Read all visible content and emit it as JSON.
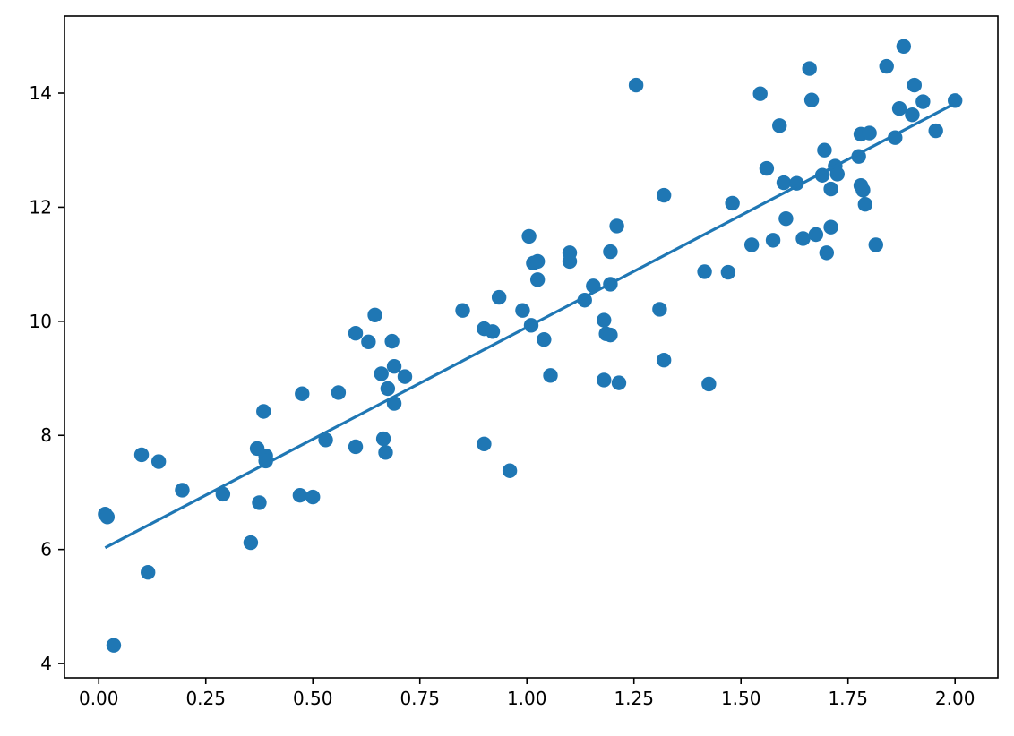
{
  "chart_data": {
    "type": "scatter",
    "title": "",
    "xlabel": "",
    "ylabel": "",
    "xlim": [
      -0.08,
      2.1
    ],
    "ylim": [
      3.75,
      15.35
    ],
    "x_ticks": [
      0.0,
      0.25,
      0.5,
      0.75,
      1.0,
      1.25,
      1.5,
      1.75,
      2.0
    ],
    "x_tick_labels": [
      "0.00",
      "0.25",
      "0.50",
      "0.75",
      "1.00",
      "1.25",
      "1.50",
      "1.75",
      "2.00"
    ],
    "y_ticks": [
      4,
      6,
      8,
      10,
      12,
      14
    ],
    "y_tick_labels": [
      "4",
      "6",
      "8",
      "10",
      "12",
      "14"
    ],
    "grid": false,
    "legend": "none",
    "colors": {
      "series": "#1f77b4",
      "axes": "#000000",
      "background": "#ffffff"
    },
    "series": [
      {
        "kind": "scatter",
        "points": [
          [
            0.015,
            6.62
          ],
          [
            0.02,
            6.57
          ],
          [
            0.035,
            4.32
          ],
          [
            0.1,
            7.66
          ],
          [
            0.115,
            5.6
          ],
          [
            0.14,
            7.54
          ],
          [
            0.195,
            7.04
          ],
          [
            0.29,
            6.97
          ],
          [
            0.355,
            6.12
          ],
          [
            0.37,
            7.77
          ],
          [
            0.375,
            6.82
          ],
          [
            0.385,
            8.42
          ],
          [
            0.39,
            7.64
          ],
          [
            0.39,
            7.55
          ],
          [
            0.47,
            6.95
          ],
          [
            0.475,
            8.73
          ],
          [
            0.5,
            6.92
          ],
          [
            0.53,
            7.92
          ],
          [
            0.56,
            8.75
          ],
          [
            0.6,
            9.79
          ],
          [
            0.6,
            7.8
          ],
          [
            0.63,
            9.64
          ],
          [
            0.645,
            10.11
          ],
          [
            0.66,
            9.08
          ],
          [
            0.665,
            7.94
          ],
          [
            0.67,
            7.7
          ],
          [
            0.675,
            8.82
          ],
          [
            0.685,
            9.65
          ],
          [
            0.69,
            9.21
          ],
          [
            0.69,
            8.56
          ],
          [
            0.715,
            9.03
          ],
          [
            0.85,
            10.19
          ],
          [
            0.9,
            9.87
          ],
          [
            0.9,
            7.85
          ],
          [
            0.92,
            9.82
          ],
          [
            0.935,
            10.42
          ],
          [
            0.96,
            7.38
          ],
          [
            0.99,
            10.19
          ],
          [
            1.005,
            11.49
          ],
          [
            1.01,
            9.93
          ],
          [
            1.015,
            11.02
          ],
          [
            1.025,
            11.05
          ],
          [
            1.025,
            10.73
          ],
          [
            1.04,
            9.68
          ],
          [
            1.055,
            9.05
          ],
          [
            1.1,
            11.2
          ],
          [
            1.1,
            11.05
          ],
          [
            1.135,
            10.37
          ],
          [
            1.155,
            10.62
          ],
          [
            1.18,
            10.02
          ],
          [
            1.18,
            8.97
          ],
          [
            1.185,
            9.78
          ],
          [
            1.195,
            9.76
          ],
          [
            1.195,
            11.22
          ],
          [
            1.195,
            10.65
          ],
          [
            1.21,
            11.67
          ],
          [
            1.215,
            8.92
          ],
          [
            1.255,
            14.14
          ],
          [
            1.31,
            10.21
          ],
          [
            1.32,
            12.21
          ],
          [
            1.32,
            9.32
          ],
          [
            1.415,
            10.87
          ],
          [
            1.425,
            8.9
          ],
          [
            1.47,
            10.86
          ],
          [
            1.48,
            12.07
          ],
          [
            1.525,
            11.34
          ],
          [
            1.545,
            13.99
          ],
          [
            1.56,
            12.68
          ],
          [
            1.575,
            11.42
          ],
          [
            1.59,
            13.43
          ],
          [
            1.6,
            12.43
          ],
          [
            1.605,
            11.8
          ],
          [
            1.63,
            12.42
          ],
          [
            1.645,
            11.45
          ],
          [
            1.66,
            14.43
          ],
          [
            1.665,
            13.88
          ],
          [
            1.675,
            11.52
          ],
          [
            1.69,
            12.56
          ],
          [
            1.695,
            13.0
          ],
          [
            1.7,
            11.2
          ],
          [
            1.71,
            11.65
          ],
          [
            1.71,
            12.32
          ],
          [
            1.72,
            12.72
          ],
          [
            1.725,
            12.58
          ],
          [
            1.775,
            12.89
          ],
          [
            1.78,
            13.28
          ],
          [
            1.78,
            12.38
          ],
          [
            1.785,
            12.3
          ],
          [
            1.79,
            12.05
          ],
          [
            1.8,
            13.3
          ],
          [
            1.815,
            11.34
          ],
          [
            1.84,
            14.47
          ],
          [
            1.86,
            13.22
          ],
          [
            1.87,
            13.73
          ],
          [
            1.88,
            14.82
          ],
          [
            1.9,
            13.62
          ],
          [
            1.905,
            14.14
          ],
          [
            1.925,
            13.85
          ],
          [
            1.955,
            13.34
          ],
          [
            2.0,
            13.87
          ]
        ]
      },
      {
        "kind": "fit-line",
        "points": [
          [
            0.015,
            6.03
          ],
          [
            2.0,
            13.82
          ]
        ]
      }
    ]
  }
}
